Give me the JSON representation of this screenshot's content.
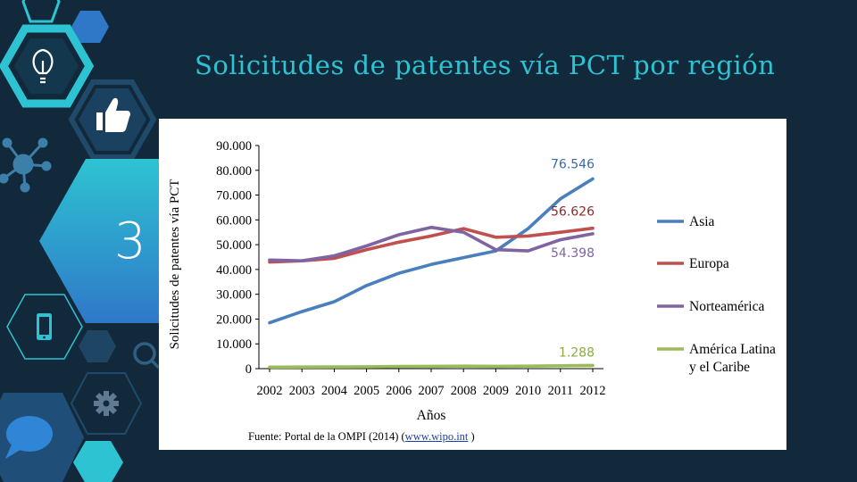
{
  "slide": {
    "title": "Solicitudes de patentes vía PCT por región",
    "number": "3",
    "source_prefix": "Fuente: Portal de la OMPI (2014) (",
    "source_link": "www.wipo.int",
    "source_suffix": " )"
  },
  "colors": {
    "background": "#12293b",
    "teal": "#2ec3d2",
    "blue": "#2f78c8",
    "asia": "#4a7fbe",
    "europa": "#c0504d",
    "norteamerica": "#8064a2",
    "latam": "#9bbb59"
  },
  "icons": [
    "lightbulb-icon",
    "thumbs-up-icon",
    "network-icon",
    "smartphone-icon",
    "search-icon",
    "gear-icon",
    "speech-bubble-icon"
  ],
  "chart_data": {
    "type": "line",
    "xlabel": "Años",
    "ylabel": "Solicitudes de patentes vía PCT",
    "ylim": [
      0,
      90000
    ],
    "yticks": [
      "0",
      "10.000",
      "20.000",
      "30.000",
      "40.000",
      "50.000",
      "60.000",
      "70.000",
      "80.000",
      "90.000"
    ],
    "categories": [
      "2002",
      "2003",
      "2004",
      "2005",
      "2006",
      "2007",
      "2008",
      "2009",
      "2010",
      "2011",
      "2012"
    ],
    "legend_position": "right",
    "series": [
      {
        "name": "Asia",
        "color": "#4a7fbe",
        "values": [
          18500,
          23000,
          27000,
          33500,
          38500,
          42000,
          44800,
          47500,
          56500,
          68500,
          76546
        ],
        "end_label": "76.546",
        "label_color": "#3a6aa8"
      },
      {
        "name": "Europa",
        "color": "#c0504d",
        "values": [
          43000,
          43500,
          44500,
          48000,
          51000,
          53500,
          56500,
          53000,
          53500,
          55000,
          56626
        ],
        "end_label": "56.626",
        "label_color": "#8b2a2a"
      },
      {
        "name": "Norteamérica",
        "color": "#8064a2",
        "values": [
          43800,
          43500,
          45500,
          49500,
          54000,
          57000,
          55000,
          48000,
          47500,
          52000,
          54398
        ],
        "end_label": "54.398",
        "label_color": "#8064a2"
      },
      {
        "name": "América Latina y el Caribe",
        "legend_lines": [
          "América Latina",
          "y el Caribe"
        ],
        "color": "#9bbb59",
        "values": [
          600,
          650,
          700,
          750,
          850,
          950,
          1000,
          950,
          1000,
          1150,
          1288
        ],
        "end_label": "1.288",
        "label_color": "#8aab3c"
      }
    ]
  }
}
